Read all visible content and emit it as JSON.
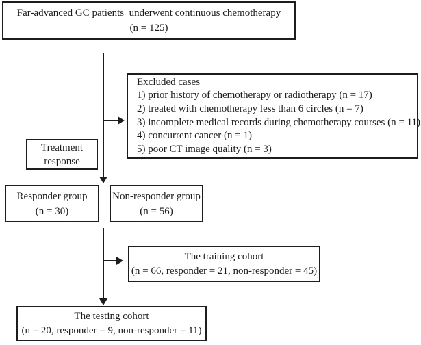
{
  "colors": {
    "ink": "#1d1d1d",
    "background": "#ffffff"
  },
  "diagram": {
    "top_box": {
      "line1": "Far-advanced GC patients  underwent continuous chemotherapy",
      "line2": "(n = 125)"
    },
    "excluded_box": {
      "title": "Excluded cases",
      "items": [
        "1) prior history of chemotherapy or radiotherapy (n = 17)",
        "2) treated with chemotherapy less than 6 circles (n = 7)",
        "3) incomplete medical records during chemotherapy courses (n = 11)",
        "4) concurrent cancer (n = 1)",
        "5) poor CT image quality (n = 3)"
      ]
    },
    "treatment_label_box": {
      "line1": "Treatment",
      "line2": "response"
    },
    "responder_box": {
      "line1": "Responder group",
      "line2": "(n = 30)"
    },
    "nonresponder_box": {
      "line1": "Non-responder group",
      "line2": "(n = 56)"
    },
    "training_box": {
      "line1": "The training cohort",
      "line2": "(n = 66, responder = 21, non-responder = 45)"
    },
    "testing_box": {
      "line1": "The testing cohort",
      "line2": "(n = 20, responder = 9, non-responder = 11)"
    }
  }
}
